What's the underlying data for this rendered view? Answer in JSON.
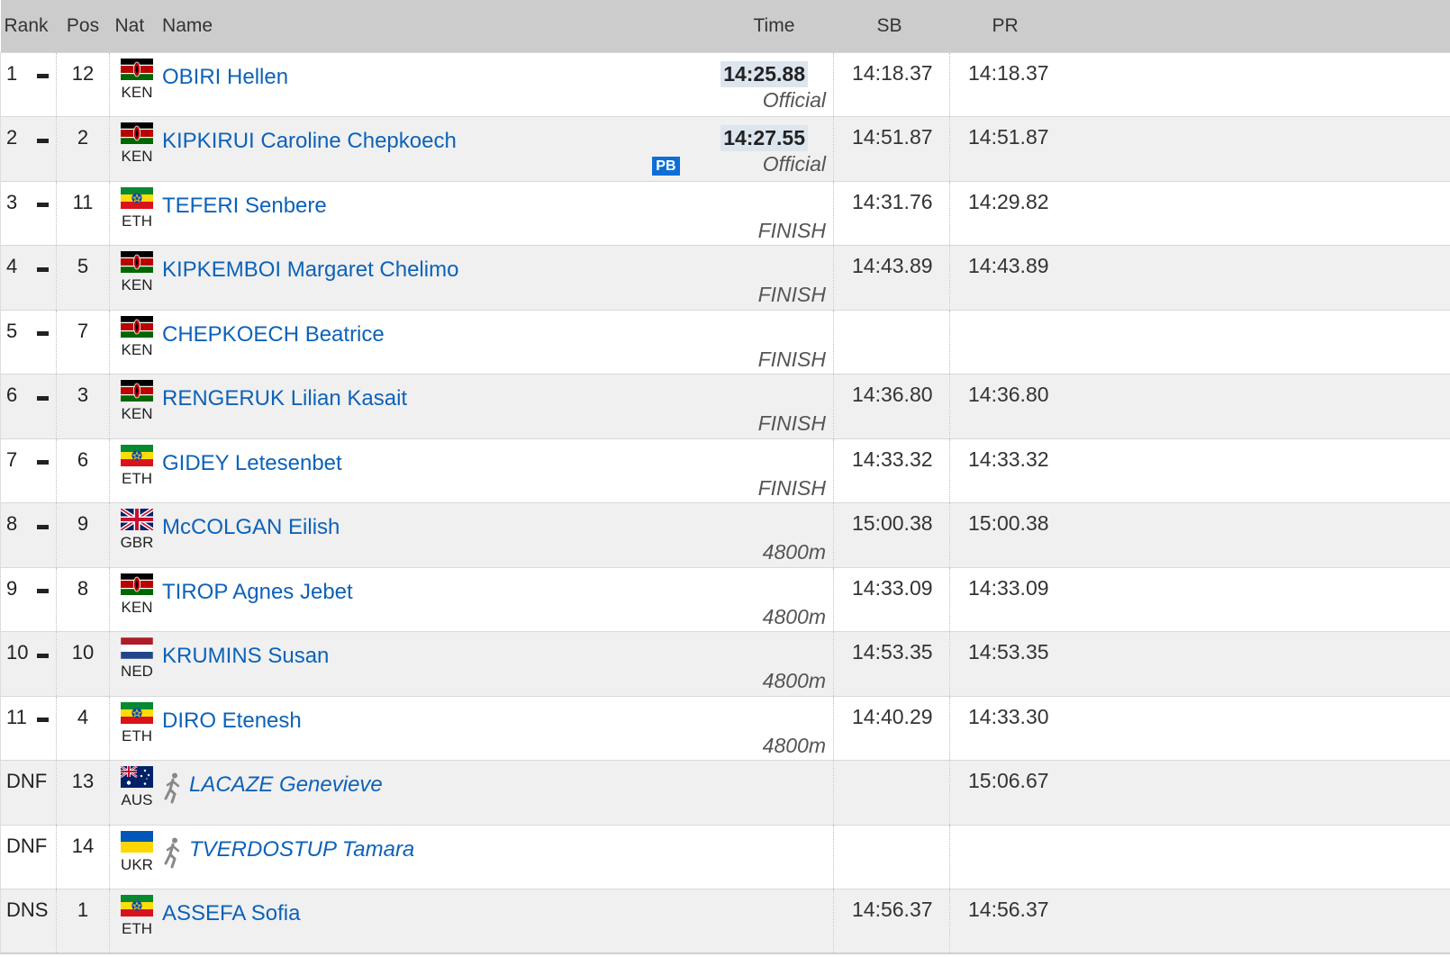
{
  "columns": {
    "rank": "Rank",
    "pos": "Pos",
    "nat": "Nat",
    "name": "Name",
    "time": "Time",
    "sb": "SB",
    "pr": "PR"
  },
  "rows": [
    {
      "rank": "1",
      "pos": "12",
      "nat": "KEN",
      "name": "OBIRI Hellen",
      "time": "14:25.88",
      "status": "Official",
      "sb": "14:18.37",
      "pr": "14:18.37",
      "pb": ""
    },
    {
      "rank": "2",
      "pos": "2",
      "nat": "KEN",
      "name": "KIPKIRUI Caroline Chepkoech",
      "time": "14:27.55",
      "status": "Official",
      "sb": "14:51.87",
      "pr": "14:51.87",
      "pb": "PB"
    },
    {
      "rank": "3",
      "pos": "11",
      "nat": "ETH",
      "name": "TEFERI Senbere",
      "time": "",
      "status": "FINISH",
      "sb": "14:31.76",
      "pr": "14:29.82",
      "pb": ""
    },
    {
      "rank": "4",
      "pos": "5",
      "nat": "KEN",
      "name": "KIPKEMBOI Margaret Chelimo",
      "time": "",
      "status": "FINISH",
      "sb": "14:43.89",
      "pr": "14:43.89",
      "pb": ""
    },
    {
      "rank": "5",
      "pos": "7",
      "nat": "KEN",
      "name": "CHEPKOECH Beatrice",
      "time": "",
      "status": "FINISH",
      "sb": "",
      "pr": "",
      "pb": ""
    },
    {
      "rank": "6",
      "pos": "3",
      "nat": "KEN",
      "name": "RENGERUK Lilian Kasait",
      "time": "",
      "status": "FINISH",
      "sb": "14:36.80",
      "pr": "14:36.80",
      "pb": ""
    },
    {
      "rank": "7",
      "pos": "6",
      "nat": "ETH",
      "name": "GIDEY Letesenbet",
      "time": "",
      "status": "FINISH",
      "sb": "14:33.32",
      "pr": "14:33.32",
      "pb": ""
    },
    {
      "rank": "8",
      "pos": "9",
      "nat": "GBR",
      "name": "McCOLGAN Eilish",
      "time": "",
      "status": "4800m",
      "sb": "15:00.38",
      "pr": "15:00.38",
      "pb": ""
    },
    {
      "rank": "9",
      "pos": "8",
      "nat": "KEN",
      "name": "TIROP Agnes Jebet",
      "time": "",
      "status": "4800m",
      "sb": "14:33.09",
      "pr": "14:33.09",
      "pb": ""
    },
    {
      "rank": "10",
      "pos": "10",
      "nat": "NED",
      "name": "KRUMINS Susan",
      "time": "",
      "status": "4800m",
      "sb": "14:53.35",
      "pr": "14:53.35",
      "pb": ""
    },
    {
      "rank": "11",
      "pos": "4",
      "nat": "ETH",
      "name": "DIRO Etenesh",
      "time": "",
      "status": "4800m",
      "sb": "14:40.29",
      "pr": "14:33.30",
      "pb": ""
    },
    {
      "rank": "DNF",
      "pos": "13",
      "nat": "AUS",
      "name": "LACAZE Genevieve",
      "time": "",
      "status": "",
      "sb": "",
      "pr": "15:06.67",
      "pb": ""
    },
    {
      "rank": "DNF",
      "pos": "14",
      "nat": "UKR",
      "name": "TVERDOSTUP Tamara",
      "time": "",
      "status": "",
      "sb": "",
      "pr": "",
      "pb": ""
    },
    {
      "rank": "DNS",
      "pos": "1",
      "nat": "ETH",
      "name": "ASSEFA Sofia",
      "time": "",
      "status": "",
      "sb": "14:56.37",
      "pr": "14:56.37",
      "pb": ""
    }
  ],
  "colors": {
    "link": "#0d62b8",
    "header_bg": "#cccccc",
    "alt_row": "#f0f0f0",
    "pb_badge": "#0d6fd6"
  },
  "icons": {
    "rank_movement": "dash-icon",
    "dnf_marker": "runner-icon"
  }
}
